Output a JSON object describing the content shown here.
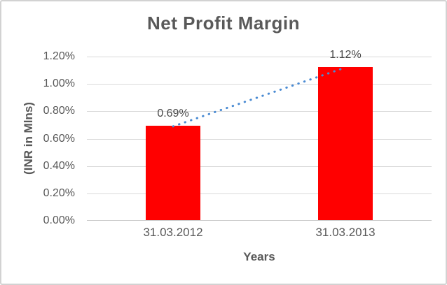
{
  "chart_data": {
    "type": "bar",
    "title": "Net Profit Margin",
    "xlabel": "Years",
    "ylabel": "(INR in Mlns)",
    "categories": [
      "31.03.2012",
      "31.03.2013"
    ],
    "values": [
      0.69,
      1.12
    ],
    "data_labels": [
      "0.69%",
      "1.12%"
    ],
    "y_tick_values": [
      0,
      0.2,
      0.4,
      0.6,
      0.8,
      1.0,
      1.2
    ],
    "y_tick_labels": [
      "0.00%",
      "0.20%",
      "0.40%",
      "0.60%",
      "0.80%",
      "1.00%",
      "1.20%"
    ],
    "ylim": [
      0,
      1.2
    ],
    "grid": true,
    "legend": "none",
    "bar_color": "#FF0000",
    "trendline": {
      "type": "linear",
      "style": "dotted",
      "color": "#4A8BD3",
      "connects": "bar-top-centers"
    },
    "colors": {
      "title_text": "#595959",
      "axis_text": "#595959",
      "data_label_text": "#474747",
      "gridline": "#D9D9D9",
      "axis_line": "#C6C6C6",
      "chart_border": "#D2D2D2",
      "background": "#FFFFFF"
    }
  }
}
